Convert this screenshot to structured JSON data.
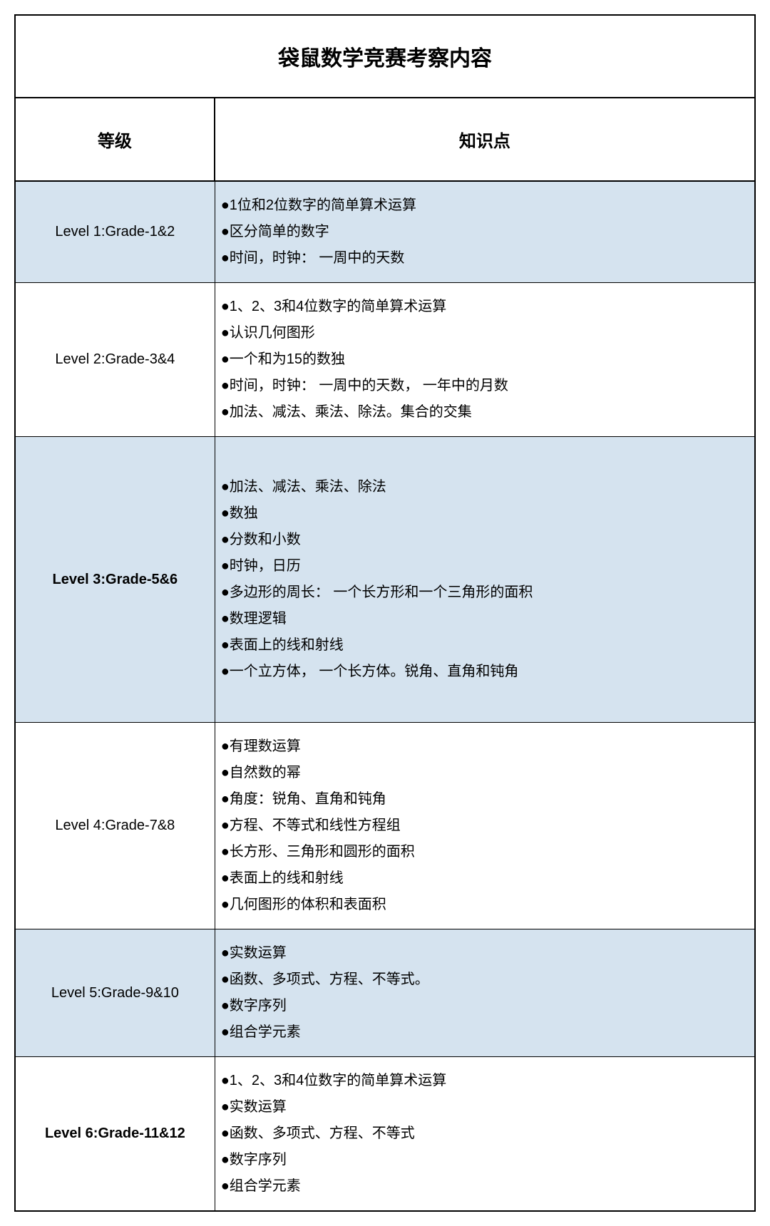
{
  "table": {
    "title": "袋鼠数学竞赛考察内容",
    "title_fontsize": 30,
    "header": {
      "level_label": "等级",
      "topics_label": "知识点",
      "fontsize": 24,
      "background_color": "#ffffff"
    },
    "colors": {
      "border_color": "#000000",
      "highlighted_row_bg": "#d5e3ef",
      "plain_row_bg": "#ffffff",
      "text_color": "#000000"
    },
    "column_widths": [
      "27%",
      "73%"
    ],
    "cell_fontsize": 20,
    "rows": [
      {
        "level": "Level 1:Grade-1&2",
        "level_bold": false,
        "highlighted": true,
        "topics": [
          "●1位和2位数字的简单算术运算",
          "●区分简单的数字",
          "●时间，时钟： 一周中的天数"
        ]
      },
      {
        "level": "Level 2:Grade-3&4",
        "level_bold": false,
        "highlighted": false,
        "topics": [
          "●1、2、3和4位数字的简单算术运算",
          "●认识几何图形",
          "●一个和为15的数独",
          "●时间，时钟： 一周中的天数， 一年中的月数",
          "●加法、减法、乘法、除法。集合的交集"
        ]
      },
      {
        "level": "Level 3:Grade-5&6",
        "level_bold": true,
        "highlighted": true,
        "topics": [
          "",
          "●加法、减法、乘法、除法",
          "●数独",
          "●分数和小数",
          "●时钟，日历",
          "●多边形的周长： 一个长方形和一个三角形的面积",
          "●数理逻辑",
          "●表面上的线和射线",
          "●一个立方体， 一个长方体。锐角、直角和钝角",
          ""
        ]
      },
      {
        "level": "Level 4:Grade-7&8",
        "level_bold": false,
        "highlighted": false,
        "topics": [
          "●有理数运算",
          "●自然数的幂",
          "●角度：锐角、直角和钝角",
          "●方程、不等式和线性方程组",
          "●长方形、三角形和圆形的面积",
          "●表面上的线和射线",
          "●几何图形的体积和表面积"
        ]
      },
      {
        "level": "Level 5:Grade-9&10",
        "level_bold": false,
        "highlighted": true,
        "topics": [
          "●实数运算",
          "●函数、多项式、方程、不等式。",
          "●数字序列",
          "●组合学元素"
        ]
      },
      {
        "level": "Level 6:Grade-11&12",
        "level_bold": true,
        "highlighted": false,
        "topics": [
          "●1、2、3和4位数字的简单算术运算",
          "●实数运算",
          "●函数、多项式、方程、不等式",
          "●数字序列",
          "●组合学元素"
        ]
      }
    ]
  }
}
